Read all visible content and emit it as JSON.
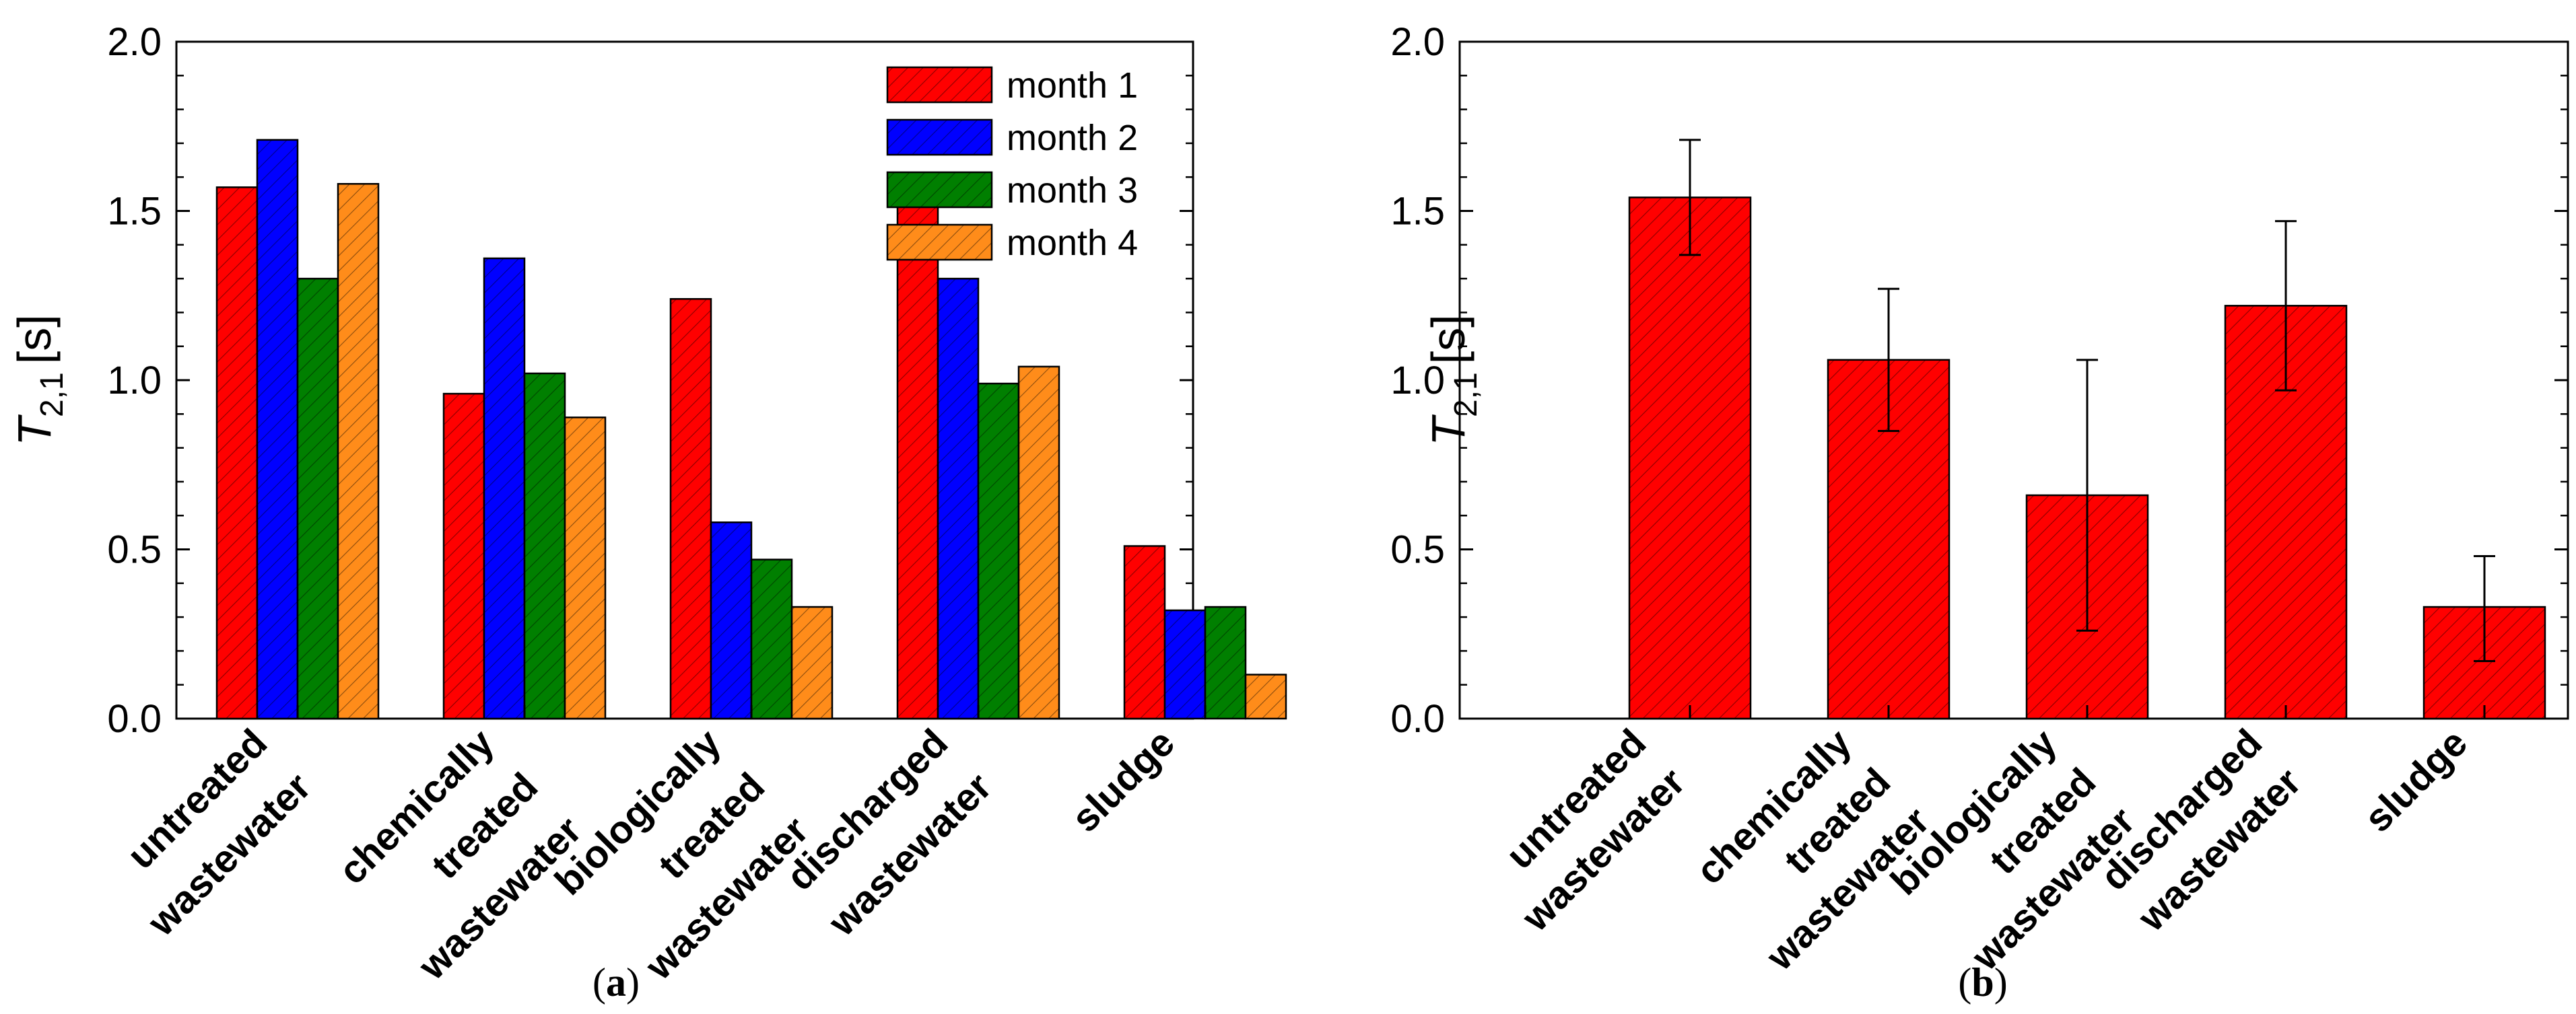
{
  "colors": {
    "month_1": "#ff0000",
    "month_2": "#0000ff",
    "month_3": "#007f00",
    "month_4": "#ff8c1a",
    "panel_b": "#ff0000",
    "axis": "#000000"
  },
  "chart_data": [
    {
      "type": "bar",
      "panel": "a",
      "caption_paren_open": "(",
      "caption_letter": "a",
      "caption_paren_close": ")",
      "ylabel_main": "T",
      "ylabel_sub": "2,1",
      "ylabel_unit": "[s]",
      "ylim": [
        0,
        2.0
      ],
      "yticks": [
        "0.0",
        "0.5",
        "1.0",
        "1.5",
        "2.0"
      ],
      "ytick_values": [
        0,
        0.5,
        1.0,
        1.5,
        2.0
      ],
      "legend_position": "top-right",
      "categories": [
        [
          "untreated",
          "wastewater"
        ],
        [
          "chemically",
          "treated",
          "wastewater"
        ],
        [
          "biologically",
          "treated",
          "wastewater"
        ],
        [
          "discharged",
          "wastewater"
        ],
        [
          "sludge"
        ]
      ],
      "series": [
        {
          "name": "month 1",
          "values": [
            1.57,
            0.96,
            1.24,
            1.53,
            0.51
          ]
        },
        {
          "name": "month 2",
          "values": [
            1.71,
            1.36,
            0.58,
            1.3,
            0.32
          ]
        },
        {
          "name": "month 3",
          "values": [
            1.3,
            1.02,
            0.47,
            0.99,
            0.33
          ]
        },
        {
          "name": "month 4",
          "values": [
            1.58,
            0.89,
            0.33,
            1.04,
            0.13
          ]
        }
      ]
    },
    {
      "type": "bar",
      "panel": "b",
      "caption_paren_open": "(",
      "caption_letter": "b",
      "caption_paren_close": ")",
      "ylabel_main": "T",
      "ylabel_sub": "2,1",
      "ylabel_unit": "[s]",
      "ylim": [
        0,
        2.0
      ],
      "yticks": [
        "0.0",
        "0.5",
        "1.0",
        "1.5",
        "2.0"
      ],
      "ytick_values": [
        0,
        0.5,
        1.0,
        1.5,
        2.0
      ],
      "categories": [
        [
          "untreated",
          "wastewater"
        ],
        [
          "chemically",
          "treated",
          "wastewater"
        ],
        [
          "biologically",
          "treated",
          "wastewater"
        ],
        [
          "discharged",
          "wastewater"
        ],
        [
          "sludge"
        ]
      ],
      "values": [
        1.54,
        1.06,
        0.66,
        1.22,
        0.33
      ],
      "error_low": [
        1.37,
        0.85,
        0.26,
        0.97,
        0.17
      ],
      "error_high": [
        1.71,
        1.27,
        1.06,
        1.47,
        0.48
      ]
    }
  ]
}
